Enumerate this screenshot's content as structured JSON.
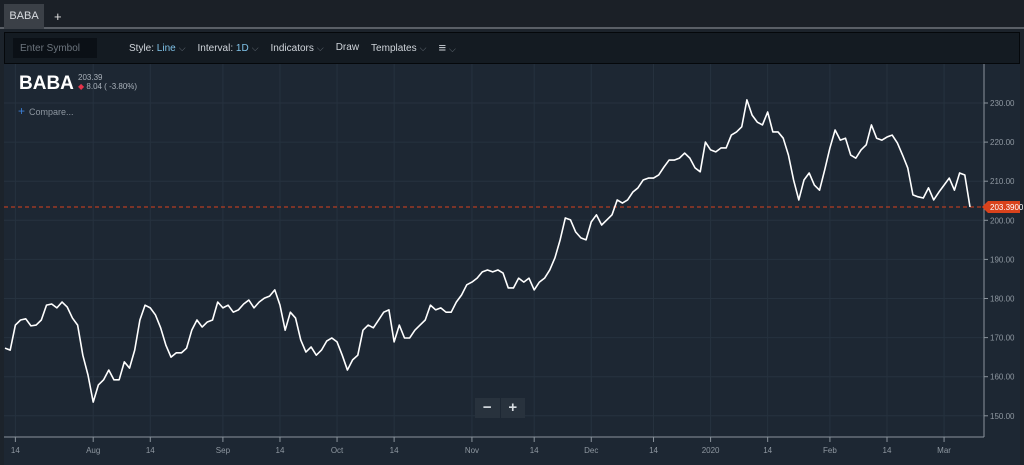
{
  "tabs": [
    {
      "label": "BABA"
    }
  ],
  "tab_add_label": "+",
  "toolbar": {
    "symbol_placeholder": "Enter Symbol",
    "style_label": "Style:",
    "style_value": "Line",
    "interval_label": "Interval:",
    "interval_value": "1D",
    "indicators": "Indicators",
    "draw": "Draw",
    "templates": "Templates",
    "menu_icon": "hamburger-icon",
    "caret": "⌵"
  },
  "quote": {
    "symbol": "BABA",
    "last": "203.39",
    "change": "8.04 ( -3.80%)",
    "change_icon": "down-diamond",
    "down_color": "#e5334b"
  },
  "compare_label": "Compare...",
  "zoom": {
    "out": "−",
    "in": "+"
  },
  "chart_data": {
    "type": "line",
    "series": [
      {
        "name": "BABA",
        "color": "#ffffff",
        "values": [
          167.3,
          166.8,
          173.2,
          174.5,
          174.8,
          173.0,
          173.2,
          174.5,
          178.3,
          178.6,
          177.6,
          179.1,
          177.8,
          175.0,
          173.2,
          165.5,
          160.4,
          153.5,
          157.9,
          159.2,
          161.7,
          159.2,
          159.2,
          163.8,
          162.2,
          166.8,
          174.5,
          178.3,
          177.6,
          175.8,
          172.5,
          168.1,
          165.0,
          166.1,
          166.1,
          167.3,
          171.9,
          174.5,
          172.7,
          174.0,
          174.5,
          179.1,
          177.6,
          178.3,
          176.5,
          177.1,
          178.6,
          179.6,
          177.6,
          179.1,
          180.1,
          180.6,
          182.2,
          178.3,
          171.9,
          176.5,
          175.0,
          169.4,
          166.3,
          167.6,
          165.5,
          166.8,
          169.1,
          169.9,
          168.9,
          165.5,
          161.7,
          164.3,
          165.5,
          171.9,
          173.2,
          172.5,
          174.5,
          176.5,
          177.1,
          168.9,
          173.2,
          169.9,
          169.9,
          171.9,
          173.2,
          174.5,
          178.3,
          177.1,
          177.6,
          176.5,
          176.5,
          179.1,
          180.9,
          183.5,
          184.2,
          185.2,
          186.8,
          187.3,
          186.8,
          187.3,
          186.5,
          182.7,
          182.7,
          185.2,
          184.2,
          185.2,
          182.2,
          184.2,
          185.2,
          187.3,
          190.4,
          195.0,
          200.6,
          200.1,
          197.0,
          195.5,
          195.0,
          199.6,
          201.4,
          198.8,
          200.1,
          201.4,
          205.2,
          204.4,
          205.2,
          207.2,
          208.3,
          210.3,
          210.8,
          210.8,
          211.6,
          213.6,
          215.4,
          215.4,
          215.9,
          217.2,
          215.9,
          213.4,
          212.4,
          220.0,
          218.0,
          217.5,
          218.5,
          218.5,
          221.8,
          222.6,
          223.9,
          230.8,
          226.9,
          225.1,
          224.4,
          227.7,
          222.6,
          222.6,
          221.0,
          216.7,
          210.3,
          205.2,
          210.3,
          212.1,
          209.0,
          207.7,
          212.9,
          218.5,
          223.1,
          220.5,
          221.0,
          216.7,
          215.9,
          218.0,
          219.3,
          224.4,
          221.0,
          220.5,
          221.3,
          221.8,
          219.8,
          216.7,
          213.4,
          206.5,
          206.0,
          205.7,
          208.3,
          205.2,
          207.2,
          209.0,
          210.8,
          207.7,
          212.1,
          211.6,
          203.39
        ]
      }
    ],
    "ylim": [
      146,
      241
    ],
    "yticks": [
      150,
      160,
      170,
      180,
      190,
      200,
      210,
      220,
      230
    ],
    "ytick_labels": [
      "150.00",
      "160.00",
      "170.00",
      "180.00",
      "190.00",
      "200.00",
      "210.00",
      "220.00",
      "230.00"
    ],
    "xticks": [
      {
        "label": "14",
        "index": 2
      },
      {
        "label": "Aug",
        "index": 17
      },
      {
        "label": "14",
        "index": 28
      },
      {
        "label": "Sep",
        "index": 42
      },
      {
        "label": "14",
        "index": 53
      },
      {
        "label": "Oct",
        "index": 64
      },
      {
        "label": "14",
        "index": 75
      },
      {
        "label": "Nov",
        "index": 90
      },
      {
        "label": "14",
        "index": 102
      },
      {
        "label": "Dec",
        "index": 113
      },
      {
        "label": "14",
        "index": 125
      },
      {
        "label": "2020",
        "index": 136
      },
      {
        "label": "14",
        "index": 147
      },
      {
        "label": "Feb",
        "index": 159
      },
      {
        "label": "14",
        "index": 170
      },
      {
        "label": "Mar",
        "index": 181
      }
    ],
    "last_price_label": "203.3900",
    "last_price": 203.39,
    "last_color": "#d9421c",
    "grid": true
  }
}
